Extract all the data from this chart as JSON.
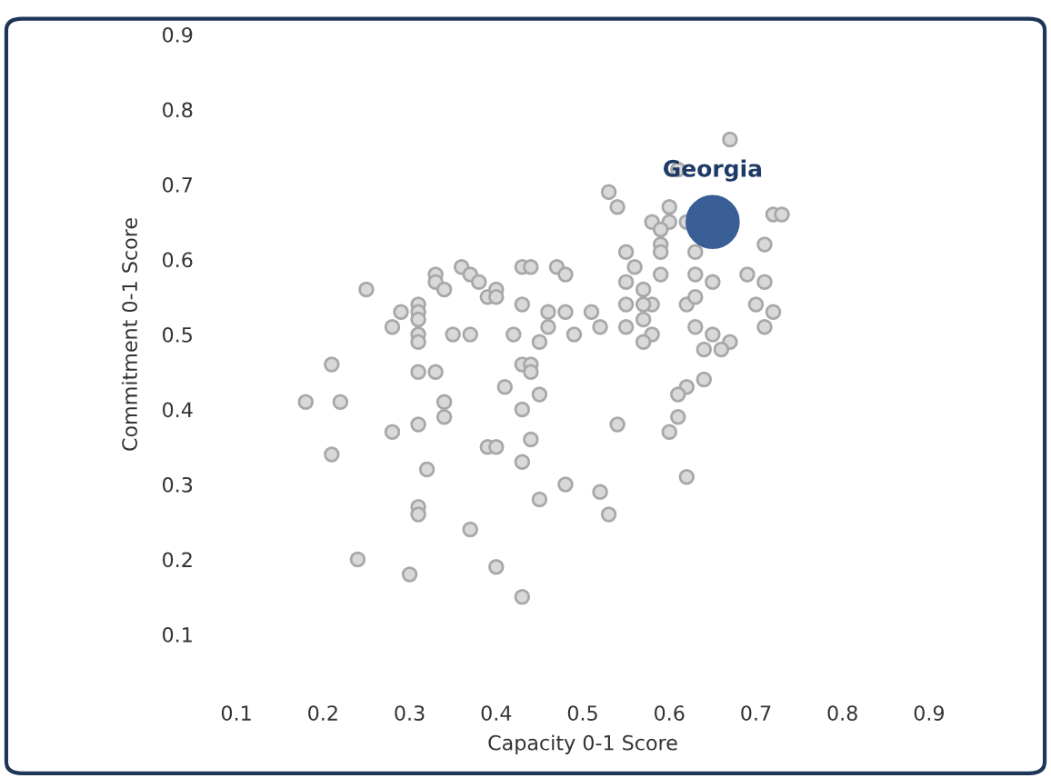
{
  "chart_data": {
    "type": "scatter",
    "xlabel": "Capacity 0-1 Score",
    "ylabel": "Commitment 0-1 Score",
    "xlim": [
      0.1,
      0.9
    ],
    "ylim": [
      0.1,
      0.9
    ],
    "xticks": [
      0.1,
      0.2,
      0.3,
      0.4,
      0.5,
      0.6,
      0.7,
      0.8,
      0.9
    ],
    "yticks": [
      0.1,
      0.2,
      0.3,
      0.4,
      0.5,
      0.6,
      0.7,
      0.8,
      0.9
    ],
    "grid": false,
    "legend": false,
    "marker": "circle",
    "series": [
      {
        "color": "#d9d9d9",
        "x": [
          0.18,
          0.21,
          0.22,
          0.25,
          0.28,
          0.29,
          0.31,
          0.31,
          0.31,
          0.31,
          0.31,
          0.31,
          0.33,
          0.33,
          0.33,
          0.34,
          0.34,
          0.34,
          0.35,
          0.36,
          0.37,
          0.37,
          0.38,
          0.39,
          0.4,
          0.4,
          0.41,
          0.42,
          0.43,
          0.43,
          0.43,
          0.44,
          0.43,
          0.44,
          0.44,
          0.45,
          0.45,
          0.28,
          0.31,
          0.21,
          0.32,
          0.31,
          0.31,
          0.24,
          0.3,
          0.37,
          0.4,
          0.43,
          0.39,
          0.4,
          0.43,
          0.44,
          0.45,
          0.48,
          0.54,
          0.52,
          0.53,
          0.6,
          0.61,
          0.62,
          0.67,
          0.61,
          0.53,
          0.54,
          0.6,
          0.58,
          0.6,
          0.62,
          0.59,
          0.59,
          0.59,
          0.63,
          0.55,
          0.71,
          0.72,
          0.73,
          0.47,
          0.48,
          0.56,
          0.55,
          0.59,
          0.63,
          0.65,
          0.69,
          0.71,
          0.46,
          0.48,
          0.51,
          0.46,
          0.49,
          0.52,
          0.55,
          0.58,
          0.57,
          0.57,
          0.62,
          0.63,
          0.55,
          0.57,
          0.58,
          0.57,
          0.63,
          0.7,
          0.72,
          0.71,
          0.65,
          0.67,
          0.64,
          0.66,
          0.62,
          0.61,
          0.64
        ],
        "values": [
          0.41,
          0.46,
          0.41,
          0.56,
          0.51,
          0.53,
          0.54,
          0.53,
          0.52,
          0.5,
          0.49,
          0.45,
          0.45,
          0.58,
          0.57,
          0.56,
          0.41,
          0.39,
          0.5,
          0.59,
          0.5,
          0.58,
          0.57,
          0.55,
          0.56,
          0.55,
          0.43,
          0.5,
          0.4,
          0.54,
          0.59,
          0.59,
          0.46,
          0.46,
          0.45,
          0.49,
          0.42,
          0.37,
          0.38,
          0.34,
          0.32,
          0.27,
          0.26,
          0.2,
          0.18,
          0.24,
          0.19,
          0.15,
          0.35,
          0.35,
          0.33,
          0.36,
          0.28,
          0.3,
          0.38,
          0.29,
          0.26,
          0.37,
          0.39,
          0.31,
          0.76,
          0.72,
          0.69,
          0.67,
          0.67,
          0.65,
          0.65,
          0.65,
          0.64,
          0.62,
          0.61,
          0.61,
          0.61,
          0.62,
          0.66,
          0.66,
          0.59,
          0.58,
          0.59,
          0.57,
          0.58,
          0.58,
          0.57,
          0.58,
          0.57,
          0.53,
          0.53,
          0.53,
          0.51,
          0.5,
          0.51,
          0.54,
          0.54,
          0.54,
          0.56,
          0.54,
          0.55,
          0.51,
          0.52,
          0.5,
          0.49,
          0.51,
          0.54,
          0.53,
          0.51,
          0.5,
          0.49,
          0.48,
          0.48,
          0.43,
          0.42,
          0.44
        ]
      },
      {
        "name": "Georgia",
        "color": "#3a5e96",
        "x": [
          0.65
        ],
        "values": [
          0.65
        ]
      }
    ]
  }
}
